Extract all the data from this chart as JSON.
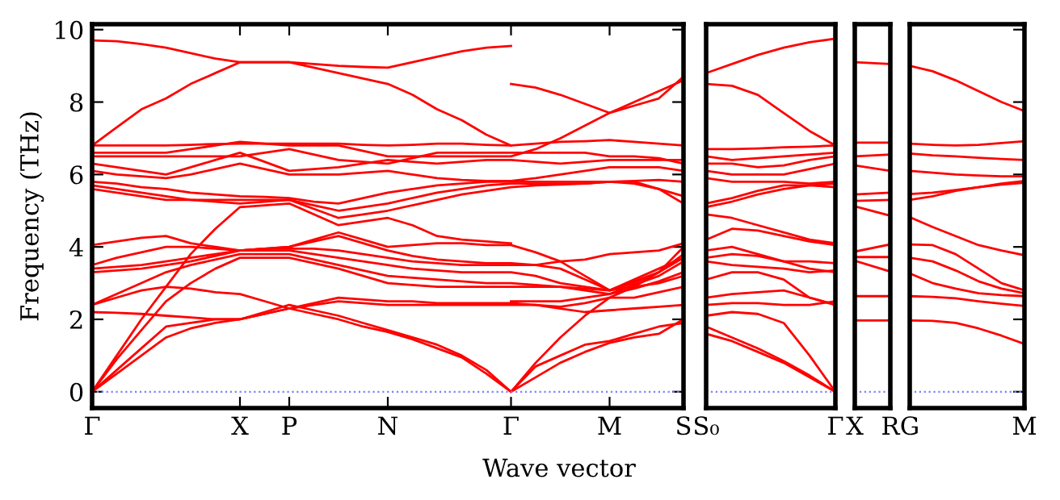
{
  "chart_data": [
    {
      "type": "line",
      "ylabel": "Frequency (THz)",
      "xlabel": "Wave vector",
      "ylim": [
        -0.45,
        10.15
      ],
      "yticks": [
        0,
        2,
        4,
        6,
        8,
        10
      ],
      "categories": [
        "Γ",
        null,
        null,
        null,
        null,
        null,
        "X",
        null,
        "P",
        null,
        null,
        null,
        "N",
        null,
        null,
        null,
        null,
        "Γ",
        null,
        null,
        null,
        "M",
        null,
        null,
        "S"
      ],
      "ref_lines": [
        {
          "axis": "y",
          "value": 0,
          "color": "#8080ff",
          "line_style": "dotted"
        }
      ],
      "series": [
        {
          "color": "#ff0000",
          "values": [
            0,
            0.5,
            1.0,
            1.5,
            1.75,
            1.9,
            2.0,
            2.15,
            2.3,
            2.15,
            2.0,
            1.8,
            1.65,
            1.45,
            1.2,
            0.95,
            0.5,
            0,
            0.4,
            0.8,
            1.1,
            1.35,
            1.5,
            1.6,
            2.0
          ]
        },
        {
          "color": "#ff0000",
          "values": [
            0,
            0.6,
            1.2,
            1.8,
            1.9,
            2.0,
            2.0,
            2.2,
            2.4,
            2.25,
            2.1,
            1.9,
            1.7,
            1.5,
            1.3,
            1.0,
            0.6,
            0,
            0.7,
            1.0,
            1.3,
            1.4,
            1.6,
            1.8,
            1.9
          ]
        },
        {
          "color": "#ff0000",
          "values": [
            2.2,
            2.18,
            2.15,
            2.1,
            2.05,
            2.0,
            2.0,
            2.15,
            2.3,
            2.4,
            2.5,
            2.45,
            2.4,
            2.4,
            2.4,
            2.4,
            2.4,
            2.4,
            2.4,
            2.3,
            2.2,
            2.25,
            2.3,
            2.35,
            2.4
          ]
        },
        {
          "color": "#ff0000",
          "values": [
            2.4,
            2.6,
            2.8,
            2.9,
            2.85,
            2.75,
            2.7,
            2.5,
            2.3,
            2.45,
            2.6,
            2.55,
            2.5,
            2.5,
            2.45,
            2.45,
            2.45,
            2.45,
            2.4,
            2.35,
            2.45,
            2.6,
            2.6,
            2.75,
            2.9
          ]
        },
        {
          "color": "#ff0000",
          "values": [
            0,
            0.9,
            1.7,
            2.5,
            3.0,
            3.4,
            3.7,
            3.7,
            3.7,
            3.55,
            3.4,
            3.2,
            3.0,
            2.95,
            2.9,
            2.9,
            2.9,
            2.9,
            2.9,
            2.9,
            2.8,
            2.7,
            2.95,
            3.2,
            3.6
          ]
        },
        {
          "color": "#ff0000",
          "values": [
            2.4,
            2.7,
            3.0,
            3.3,
            3.5,
            3.65,
            3.8,
            3.8,
            3.8,
            3.65,
            3.5,
            3.35,
            3.2,
            3.15,
            3.1,
            3.05,
            3.0,
            3.0,
            2.95,
            2.9,
            2.85,
            2.8,
            3.05,
            3.3,
            3.8
          ]
        },
        {
          "color": "#ff0000",
          "values": [
            3.3,
            3.35,
            3.4,
            3.5,
            3.6,
            3.75,
            3.9,
            3.9,
            3.9,
            3.8,
            3.7,
            3.6,
            3.5,
            3.4,
            3.35,
            3.3,
            3.3,
            3.3,
            3.2,
            3.0,
            2.9,
            2.8,
            3.1,
            3.4,
            3.7
          ]
        },
        {
          "color": "#ff0000",
          "values": [
            3.4,
            3.45,
            3.5,
            3.6,
            3.7,
            3.8,
            3.9,
            3.95,
            3.95,
            3.95,
            3.9,
            3.8,
            3.7,
            3.6,
            3.55,
            3.5,
            3.5,
            3.5,
            3.5,
            3.6,
            3.65,
            3.8,
            3.85,
            3.9,
            4.1
          ]
        },
        {
          "color": "#ff0000",
          "values": [
            3.5,
            3.7,
            3.85,
            4.0,
            4.0,
            3.95,
            3.9,
            3.95,
            4.0,
            4.15,
            4.3,
            4.1,
            3.9,
            3.75,
            3.65,
            3.6,
            3.55,
            3.55,
            3.5,
            3.4,
            3.1,
            2.8,
            3.0,
            3.3,
            3.7
          ]
        },
        {
          "color": "#ff0000",
          "values": [
            4.05,
            4.15,
            4.25,
            4.3,
            4.1,
            4.0,
            3.9,
            3.95,
            4.0,
            4.2,
            4.4,
            4.2,
            4.0,
            4.05,
            4.1,
            4.1,
            4.05,
            4.05,
            3.85,
            3.6,
            3.2,
            2.8,
            2.9,
            3.0,
            3.2
          ]
        },
        {
          "color": "#ff0000",
          "values": [
            0,
            1.0,
            2.0,
            2.9,
            3.8,
            4.5,
            5.1,
            5.15,
            5.2,
            4.9,
            4.6,
            4.7,
            4.8,
            4.6,
            4.3,
            4.2,
            4.15,
            4.1,
            null,
            null,
            null,
            null,
            null,
            null,
            null
          ]
        },
        {
          "color": "#ff0000",
          "values": [
            5.6,
            5.5,
            5.4,
            5.3,
            5.3,
            5.3,
            5.3,
            5.3,
            5.3,
            5.05,
            4.8,
            4.9,
            5.0,
            5.15,
            5.3,
            5.45,
            5.55,
            5.65,
            5.7,
            5.72,
            5.75,
            5.8,
            5.75,
            5.6,
            5.2
          ]
        },
        {
          "color": "#ff0000",
          "values": [
            5.7,
            5.6,
            5.5,
            5.4,
            5.3,
            5.25,
            5.2,
            5.25,
            5.3,
            5.15,
            5.0,
            5.1,
            5.2,
            5.35,
            5.5,
            5.6,
            5.7,
            5.75,
            5.75,
            5.75,
            5.75,
            5.8,
            5.8,
            5.6,
            5.4
          ]
        },
        {
          "color": "#ff0000",
          "values": [
            5.8,
            5.75,
            5.65,
            5.6,
            5.5,
            5.45,
            5.4,
            5.38,
            5.35,
            5.25,
            5.2,
            5.35,
            5.5,
            5.6,
            5.7,
            5.75,
            5.8,
            5.8,
            5.8,
            5.8,
            5.8,
            5.8,
            5.82,
            5.85,
            5.8
          ]
        },
        {
          "color": "#ff0000",
          "values": [
            6.1,
            6.0,
            5.95,
            5.9,
            6.0,
            6.15,
            6.3,
            6.15,
            6.0,
            6.0,
            6.0,
            6.05,
            6.1,
            6.0,
            5.9,
            5.85,
            5.82,
            5.82,
            5.9,
            6.0,
            6.1,
            6.2,
            6.2,
            6.2,
            6.1
          ]
        },
        {
          "color": "#ff0000",
          "values": [
            6.3,
            6.2,
            6.1,
            6.0,
            6.2,
            6.4,
            6.6,
            6.35,
            6.1,
            6.15,
            6.2,
            6.3,
            6.4,
            6.35,
            6.3,
            6.35,
            6.4,
            6.4,
            6.35,
            6.3,
            6.35,
            6.4,
            6.4,
            6.4,
            6.4
          ]
        },
        {
          "color": "#ff0000",
          "values": [
            6.5,
            6.5,
            6.5,
            6.5,
            6.5,
            6.5,
            6.5,
            6.6,
            6.7,
            6.55,
            6.4,
            6.35,
            6.3,
            6.45,
            6.6,
            6.6,
            6.6,
            6.6,
            6.6,
            6.6,
            6.6,
            6.5,
            6.5,
            6.45,
            6.3
          ]
        },
        {
          "color": "#ff0000",
          "values": [
            6.6,
            6.6,
            6.6,
            6.6,
            6.7,
            6.8,
            6.9,
            6.85,
            6.8,
            6.8,
            6.8,
            6.65,
            6.5,
            6.5,
            6.5,
            6.5,
            6.5,
            6.5,
            6.7,
            7.0,
            7.35,
            7.7,
            8.0,
            8.3,
            8.6
          ]
        },
        {
          "color": "#ff0000",
          "values": [
            6.8,
            6.8,
            6.8,
            6.8,
            6.82,
            6.84,
            6.85,
            6.85,
            6.85,
            6.85,
            6.85,
            6.82,
            6.8,
            6.82,
            6.85,
            6.85,
            6.82,
            6.8,
            6.85,
            6.9,
            6.92,
            6.95,
            6.9,
            6.85,
            6.8
          ]
        },
        {
          "color": "#ff0000",
          "values": [
            6.8,
            7.3,
            7.8,
            8.1,
            8.5,
            8.8,
            9.1,
            9.1,
            9.1,
            8.95,
            8.8,
            8.65,
            8.5,
            8.2,
            7.8,
            7.5,
            7.1,
            6.8,
            null,
            null,
            null,
            null,
            null,
            null,
            null
          ]
        },
        {
          "color": "#ff0000",
          "values": [
            9.7,
            9.68,
            9.6,
            9.5,
            9.35,
            9.2,
            9.1,
            9.1,
            9.1,
            9.05,
            9.0,
            8.97,
            8.95,
            9.1,
            9.25,
            9.4,
            9.5,
            9.55,
            null,
            null,
            null,
            null,
            null,
            null,
            null
          ]
        },
        {
          "color": "#ff0000",
          "values": [
            null,
            null,
            null,
            null,
            null,
            null,
            null,
            null,
            null,
            null,
            null,
            null,
            null,
            null,
            null,
            null,
            null,
            0,
            0.8,
            1.5,
            2.1,
            2.6,
            2.9,
            3.3,
            4.0
          ]
        },
        {
          "color": "#ff0000",
          "values": [
            null,
            null,
            null,
            null,
            null,
            null,
            null,
            null,
            null,
            null,
            null,
            null,
            null,
            null,
            null,
            null,
            null,
            8.5,
            8.4,
            8.2,
            7.95,
            7.7,
            7.9,
            8.1,
            8.7
          ]
        },
        {
          "color": "#ff0000",
          "values": [
            null,
            null,
            null,
            null,
            null,
            null,
            null,
            null,
            null,
            null,
            null,
            null,
            null,
            null,
            null,
            null,
            null,
            2.5,
            2.5,
            2.5,
            2.6,
            2.7,
            2.85,
            3.05,
            3.3
          ]
        }
      ]
    },
    {
      "type": "line",
      "tick_labels": "x",
      "ylim": [
        -0.45,
        10.15
      ],
      "yticks": [
        0,
        2,
        4,
        6,
        8,
        10
      ],
      "categories": [
        "S₀",
        null,
        null,
        null,
        null,
        "Γ"
      ],
      "ref_lines": [
        {
          "axis": "y",
          "value": 0,
          "color": "#8080ff",
          "line_style": "dotted"
        }
      ],
      "series": [
        {
          "color": "#ff0000",
          "values": [
            1.6,
            1.4,
            1.1,
            0.8,
            0.4,
            0
          ]
        },
        {
          "color": "#ff0000",
          "values": [
            1.8,
            1.5,
            1.2,
            0.85,
            0.45,
            0
          ]
        },
        {
          "color": "#ff0000",
          "values": [
            2.1,
            2.2,
            2.15,
            1.9,
            1.0,
            0
          ]
        },
        {
          "color": "#ff0000",
          "values": [
            2.4,
            2.45,
            2.45,
            2.4,
            2.4,
            2.5
          ]
        },
        {
          "color": "#ff0000",
          "values": [
            2.6,
            2.7,
            2.75,
            2.8,
            2.6,
            2.4
          ]
        },
        {
          "color": "#ff0000",
          "values": [
            3.1,
            3.3,
            3.3,
            3.1,
            2.6,
            2.4
          ]
        },
        {
          "color": "#ff0000",
          "values": [
            3.6,
            3.5,
            3.45,
            3.4,
            3.3,
            3.35
          ]
        },
        {
          "color": "#ff0000",
          "values": [
            3.7,
            3.8,
            3.75,
            3.6,
            3.4,
            3.3
          ]
        },
        {
          "color": "#ff0000",
          "values": [
            3.9,
            4.0,
            3.8,
            3.6,
            3.6,
            3.55
          ]
        },
        {
          "color": "#ff0000",
          "values": [
            4.2,
            4.5,
            4.45,
            4.3,
            4.15,
            4.05
          ]
        },
        {
          "color": "#ff0000",
          "values": [
            4.9,
            4.8,
            4.6,
            4.4,
            4.2,
            4.1
          ]
        },
        {
          "color": "#ff0000",
          "values": [
            5.2,
            5.35,
            5.55,
            5.7,
            5.7,
            5.65
          ]
        },
        {
          "color": "#ff0000",
          "values": [
            5.1,
            5.25,
            5.45,
            5.6,
            5.7,
            5.75
          ]
        },
        {
          "color": "#ff0000",
          "values": [
            5.9,
            5.8,
            5.8,
            5.8,
            5.75,
            5.8
          ]
        },
        {
          "color": "#ff0000",
          "values": [
            6.1,
            6.0,
            6.0,
            6.0,
            6.15,
            6.3
          ]
        },
        {
          "color": "#ff0000",
          "values": [
            6.3,
            6.3,
            6.2,
            6.25,
            6.4,
            6.5
          ]
        },
        {
          "color": "#ff0000",
          "values": [
            6.5,
            6.4,
            6.45,
            6.5,
            6.55,
            6.6
          ]
        },
        {
          "color": "#ff0000",
          "values": [
            6.7,
            6.7,
            6.72,
            6.75,
            6.77,
            6.8
          ]
        },
        {
          "color": "#ff0000",
          "values": [
            8.5,
            8.45,
            8.2,
            7.7,
            7.2,
            6.8
          ]
        },
        {
          "color": "#ff0000",
          "values": [
            8.8,
            9.05,
            9.3,
            9.5,
            9.65,
            9.75
          ]
        }
      ]
    },
    {
      "type": "line",
      "tick_labels": "x",
      "ylim": [
        -0.45,
        10.15
      ],
      "yticks": [
        0,
        2,
        4,
        6,
        8,
        10
      ],
      "categories": [
        "X",
        "R"
      ],
      "ref_lines": [
        {
          "axis": "y",
          "value": 0,
          "color": "#8080ff",
          "line_style": "dotted"
        }
      ],
      "series": [
        {
          "color": "#ff0000",
          "values": [
            9.1,
            9.05
          ]
        },
        {
          "color": "#ff0000",
          "values": [
            6.88,
            6.88
          ]
        },
        {
          "color": "#ff0000",
          "values": [
            6.5,
            6.55
          ]
        },
        {
          "color": "#ff0000",
          "values": [
            6.25,
            6.1
          ]
        },
        {
          "color": "#ff0000",
          "values": [
            5.45,
            5.5
          ]
        },
        {
          "color": "#ff0000",
          "values": [
            5.27,
            5.3
          ]
        },
        {
          "color": "#ff0000",
          "values": [
            5.12,
            4.86
          ]
        },
        {
          "color": "#ff0000",
          "values": [
            3.87,
            4.07
          ]
        },
        {
          "color": "#ff0000",
          "values": [
            3.72,
            3.72
          ]
        },
        {
          "color": "#ff0000",
          "values": [
            3.62,
            3.32
          ]
        },
        {
          "color": "#ff0000",
          "values": [
            2.64,
            2.64
          ]
        },
        {
          "color": "#ff0000",
          "values": [
            1.97,
            1.97
          ]
        }
      ]
    },
    {
      "type": "line",
      "tick_labels": "x",
      "ylim": [
        -0.45,
        10.15
      ],
      "yticks": [
        0,
        2,
        4,
        6,
        8,
        10
      ],
      "categories": [
        "G",
        null,
        null,
        null,
        null,
        "M"
      ],
      "ref_lines": [
        {
          "axis": "y",
          "value": 0,
          "color": "#8080ff",
          "line_style": "dotted"
        }
      ],
      "series": [
        {
          "color": "#ff0000",
          "values": [
            9.0,
            8.85,
            8.6,
            8.3,
            8.0,
            7.75
          ]
        },
        {
          "color": "#ff0000",
          "values": [
            6.85,
            6.82,
            6.8,
            6.82,
            6.87,
            6.92
          ]
        },
        {
          "color": "#ff0000",
          "values": [
            6.58,
            6.53,
            6.5,
            6.46,
            6.43,
            6.4
          ]
        },
        {
          "color": "#ff0000",
          "values": [
            6.1,
            6.05,
            6.0,
            5.97,
            5.95,
            5.95
          ]
        },
        {
          "color": "#ff0000",
          "values": [
            5.46,
            5.5,
            5.57,
            5.65,
            5.72,
            5.77
          ]
        },
        {
          "color": "#ff0000",
          "values": [
            5.3,
            5.4,
            5.55,
            5.65,
            5.75,
            5.82
          ]
        },
        {
          "color": "#ff0000",
          "values": [
            4.82,
            4.55,
            4.3,
            4.05,
            3.9,
            3.77
          ]
        },
        {
          "color": "#ff0000",
          "values": [
            4.07,
            4.05,
            3.8,
            3.4,
            3.0,
            2.8
          ]
        },
        {
          "color": "#ff0000",
          "values": [
            3.7,
            3.6,
            3.35,
            3.05,
            2.85,
            2.72
          ]
        },
        {
          "color": "#ff0000",
          "values": [
            3.27,
            3.0,
            2.85,
            2.72,
            2.67,
            2.64
          ]
        },
        {
          "color": "#ff0000",
          "values": [
            2.64,
            2.62,
            2.58,
            2.5,
            2.43,
            2.37
          ]
        },
        {
          "color": "#ff0000",
          "values": [
            1.97,
            1.96,
            1.9,
            1.75,
            1.55,
            1.32
          ]
        }
      ]
    }
  ]
}
